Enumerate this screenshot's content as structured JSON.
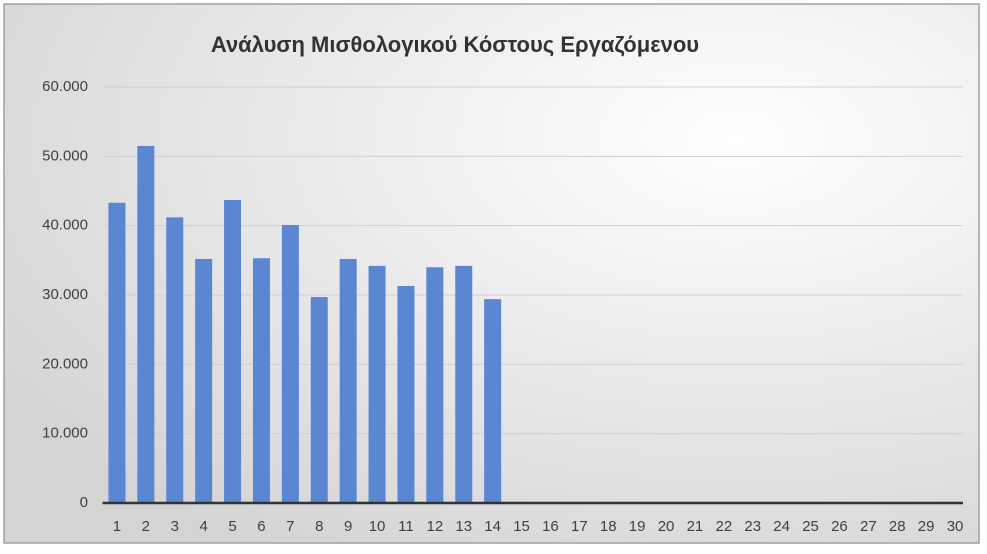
{
  "chart_data": {
    "type": "bar",
    "title": "Ανάλυση Μισθολογικού Κόστους Εργαζόμενου",
    "categories": [
      "1",
      "2",
      "3",
      "4",
      "5",
      "6",
      "7",
      "8",
      "9",
      "10",
      "11",
      "12",
      "13",
      "14",
      "15",
      "16",
      "17",
      "18",
      "19",
      "20",
      "21",
      "22",
      "23",
      "24",
      "25",
      "26",
      "27",
      "28",
      "29",
      "30"
    ],
    "values": [
      43300,
      51500,
      41200,
      35200,
      43700,
      35300,
      40100,
      29700,
      35200,
      34200,
      31300,
      34000,
      34200,
      29400,
      null,
      null,
      null,
      null,
      null,
      null,
      null,
      null,
      null,
      null,
      null,
      null,
      null,
      null,
      null,
      null
    ],
    "color": "#5a86d2",
    "ylim": [
      0,
      60000
    ],
    "yticks": [
      0,
      {
        "value": 10000,
        "label": "10.000"
      },
      {
        "value": 20000,
        "label": "20.000"
      },
      {
        "value": 30000,
        "label": "30.000"
      },
      {
        "value": 40000,
        "label": "40.000"
      },
      {
        "value": 50000,
        "label": "50.000"
      },
      {
        "value": 60000,
        "label": "60.000"
      }
    ],
    "grid": true
  }
}
